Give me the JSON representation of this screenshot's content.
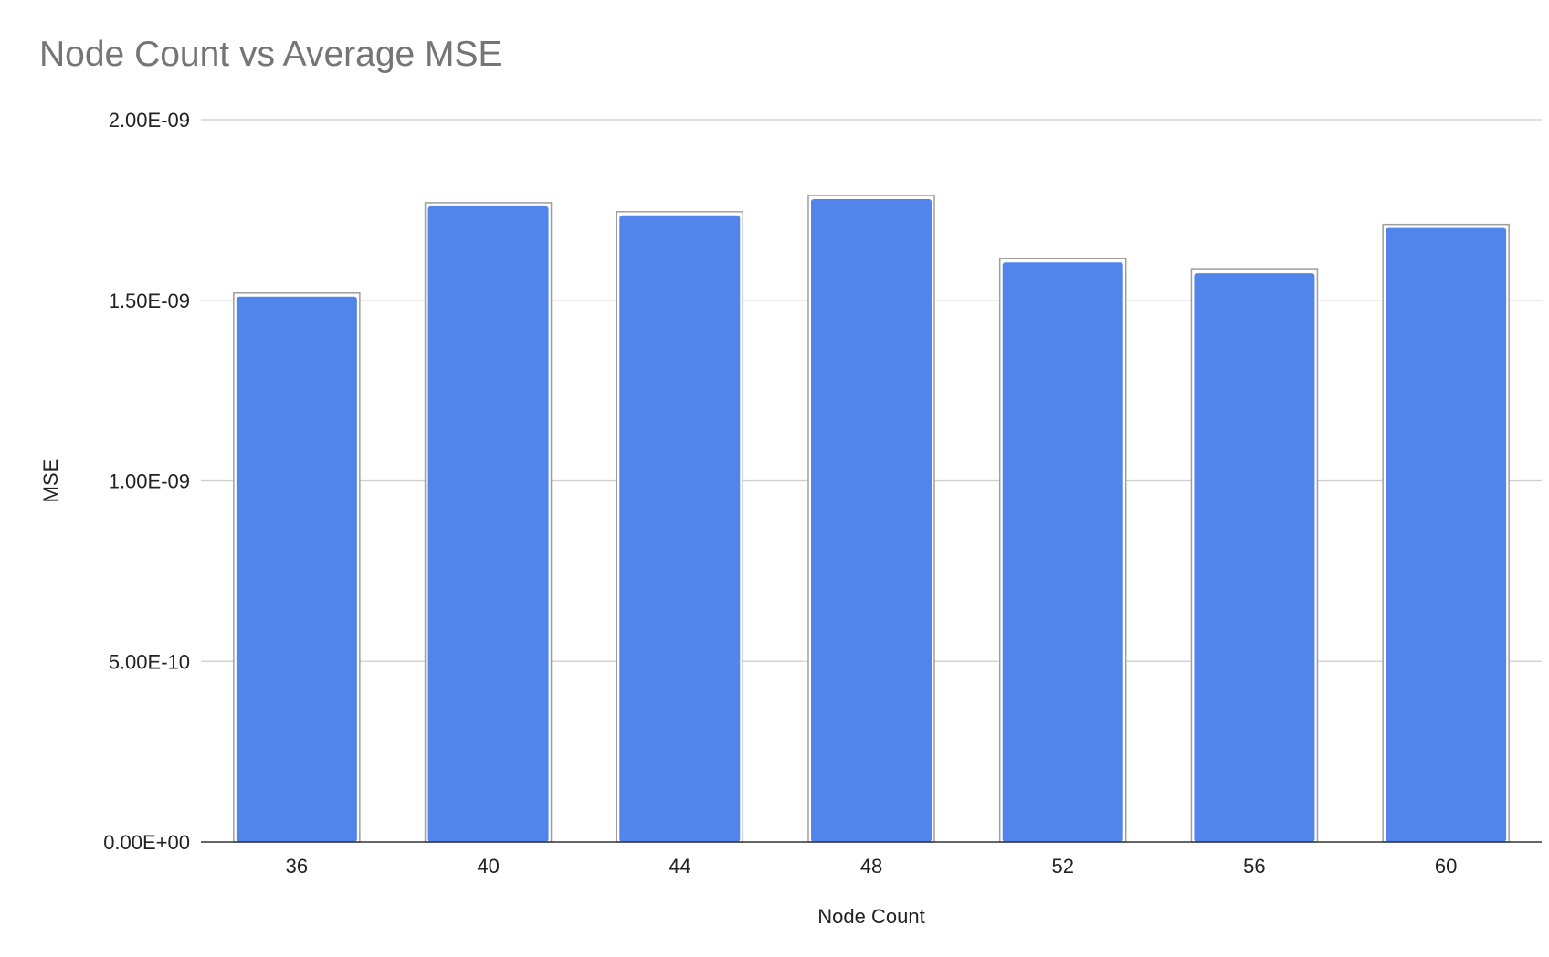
{
  "chart_data": {
    "type": "bar",
    "title": "Node Count vs Average MSE",
    "xlabel": "Node Count",
    "ylabel": "MSE",
    "categories": [
      "36",
      "40",
      "44",
      "48",
      "52",
      "56",
      "60"
    ],
    "series": [
      {
        "name": "",
        "values": [
          1.51e-09,
          1.76e-09,
          1.735e-09,
          1.78e-09,
          1.605e-09,
          1.575e-09,
          1.7e-09
        ]
      }
    ],
    "ylim": [
      0,
      2e-09
    ],
    "yticks": [
      0,
      5e-10,
      1e-09,
      1.5e-09,
      2e-09
    ],
    "ytick_labels": [
      "0.00E+00",
      "5.00E-10",
      "1.00E-09",
      "1.50E-09",
      "2.00E-09"
    ],
    "grid": true,
    "legend": "none",
    "colors": {
      "bar_fill": "#5285ec",
      "bar_outline": "#9e9e9e",
      "grid": "#cccccc",
      "axis": "#333333",
      "title": "#757575"
    }
  }
}
